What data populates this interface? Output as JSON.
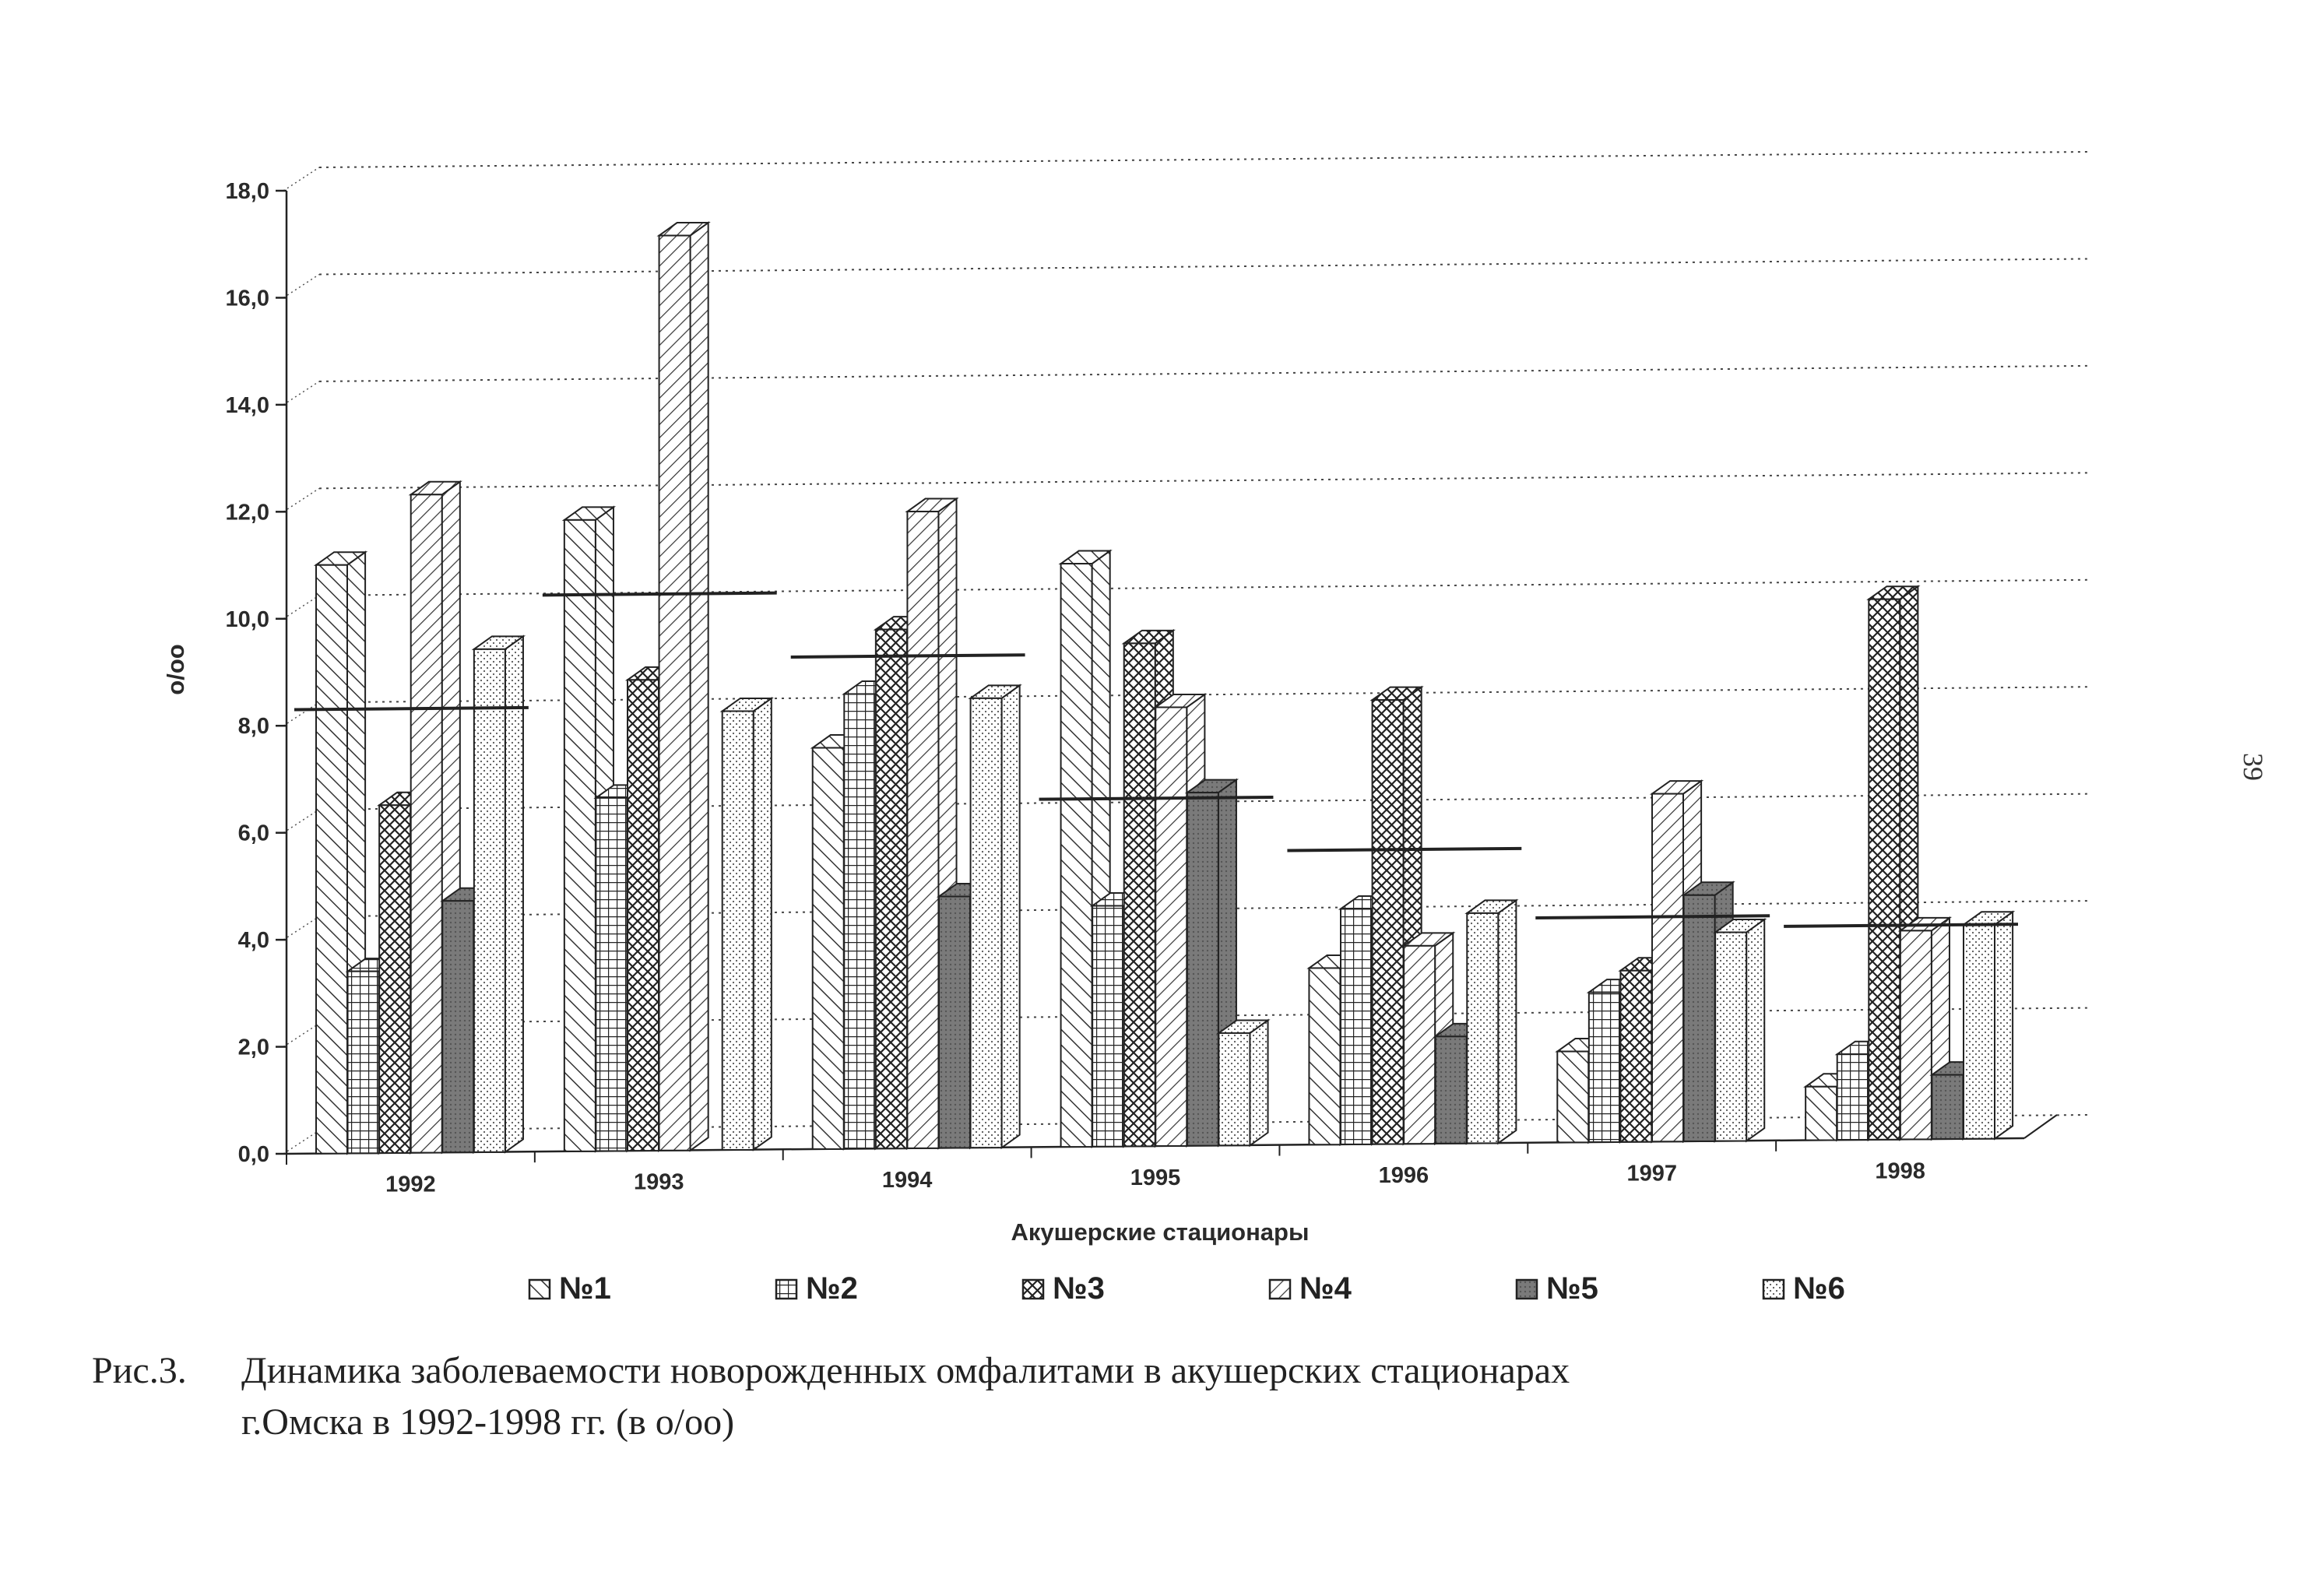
{
  "chart_data": {
    "type": "bar",
    "ylabel": "o/oo",
    "xlabel": "Акушерские стационары",
    "ylim": [
      0,
      18
    ],
    "yticks": [
      "0,0",
      "2,0",
      "4,0",
      "6,0",
      "8,0",
      "10,0",
      "12,0",
      "14,0",
      "16,0",
      "18,0"
    ],
    "grid": "horizontal dotted",
    "legend_position": "bottom",
    "categories": [
      "1992",
      "1993",
      "1994",
      "1995",
      "1996",
      "1997",
      "1998"
    ],
    "series": [
      {
        "name": "№1",
        "values": [
          11.0,
          11.8,
          7.5,
          10.9,
          3.3,
          1.7,
          1.0
        ]
      },
      {
        "name": "№2",
        "values": [
          3.4,
          6.6,
          8.5,
          4.5,
          4.4,
          2.8,
          1.6
        ]
      },
      {
        "name": "№3",
        "values": [
          6.5,
          8.8,
          9.7,
          9.4,
          8.3,
          3.2,
          10.1
        ]
      },
      {
        "name": "№4",
        "values": [
          12.3,
          17.1,
          11.9,
          8.2,
          3.7,
          6.5,
          3.9
        ]
      },
      {
        "name": "№5",
        "values": [
          4.7,
          0.0,
          4.7,
          6.6,
          2.0,
          4.6,
          1.2
        ]
      },
      {
        "name": "№6",
        "values": [
          9.4,
          8.2,
          8.4,
          2.1,
          4.3,
          3.9,
          4.0
        ]
      }
    ],
    "average": [
      8.3,
      10.4,
      9.2,
      6.5,
      5.5,
      4.2,
      4.0
    ]
  },
  "caption": {
    "prefix": "Рис.3.",
    "line1": "Динамика заболеваемости новорожденных омфалитами в акушерских стационарах",
    "line2": "г.Омска в 1992-1998 гг. (в о/оо)"
  },
  "page_number": "39"
}
